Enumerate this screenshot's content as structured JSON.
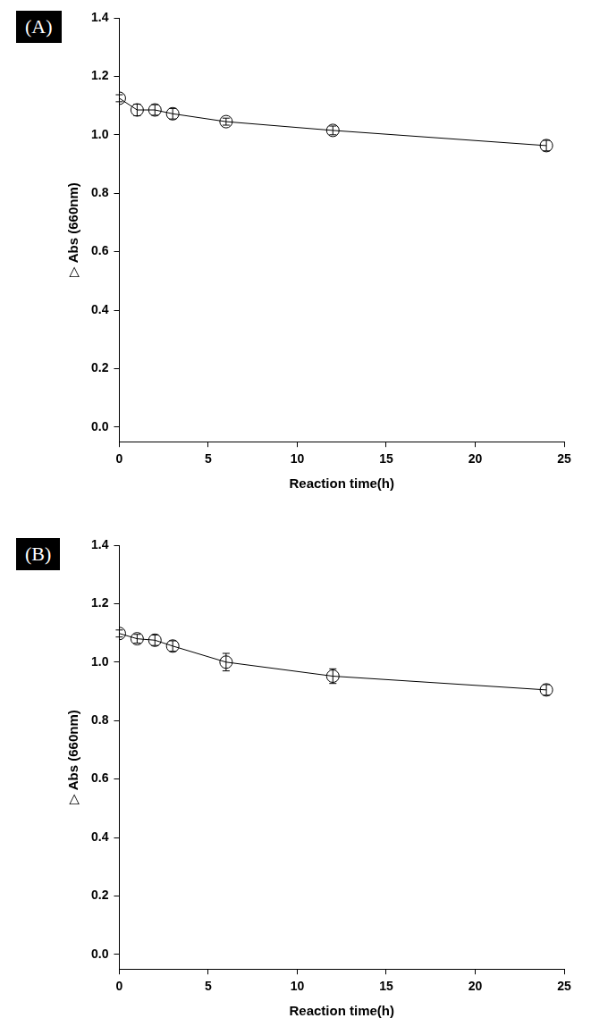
{
  "chart_data": [
    {
      "type": "line",
      "title": "(A)",
      "x_label": "Reaction time(h)",
      "y_label": "▷ Abs (660nm)",
      "x": [
        0,
        1,
        2,
        3,
        6,
        12,
        24
      ],
      "values": [
        1.125,
        1.085,
        1.085,
        1.072,
        1.045,
        1.015,
        0.963
      ],
      "errors": [
        0.012,
        0.02,
        0.018,
        0.018,
        0.012,
        0.015,
        0.018
      ],
      "color": "#000000",
      "marker": "circle",
      "line_style": "solid",
      "grid": false,
      "xlim": [
        0,
        25
      ],
      "xticks": [
        0,
        5,
        10,
        15,
        20,
        25
      ],
      "ylim": [
        -0.05,
        1.4
      ],
      "yticks": [
        {
          "value": 0,
          "label": "0.0"
        },
        0.2,
        0.4,
        0.6,
        0.8,
        {
          "value": 1,
          "label": "1.0"
        },
        1.2,
        1.4
      ]
    },
    {
      "type": "line",
      "title": "(B)",
      "x_label": "Reaction time(h)",
      "y_label": "▷ Abs (660nm)",
      "x": [
        0,
        1,
        2,
        3,
        6,
        12,
        24
      ],
      "values": [
        1.098,
        1.08,
        1.075,
        1.055,
        1.0,
        0.952,
        0.905
      ],
      "errors": [
        0.012,
        0.015,
        0.018,
        0.018,
        0.03,
        0.025,
        0.018
      ],
      "color": "#000000",
      "marker": "circle",
      "line_style": "solid",
      "grid": false,
      "xlim": [
        0,
        25
      ],
      "xticks": [
        0,
        5,
        10,
        15,
        20,
        25
      ],
      "ylim": [
        -0.05,
        1.4
      ],
      "yticks": [
        {
          "value": 0,
          "label": "0.0"
        },
        0.2,
        0.4,
        0.6,
        0.8,
        {
          "value": 1,
          "label": "1.0"
        },
        1.2,
        1.4
      ]
    }
  ]
}
